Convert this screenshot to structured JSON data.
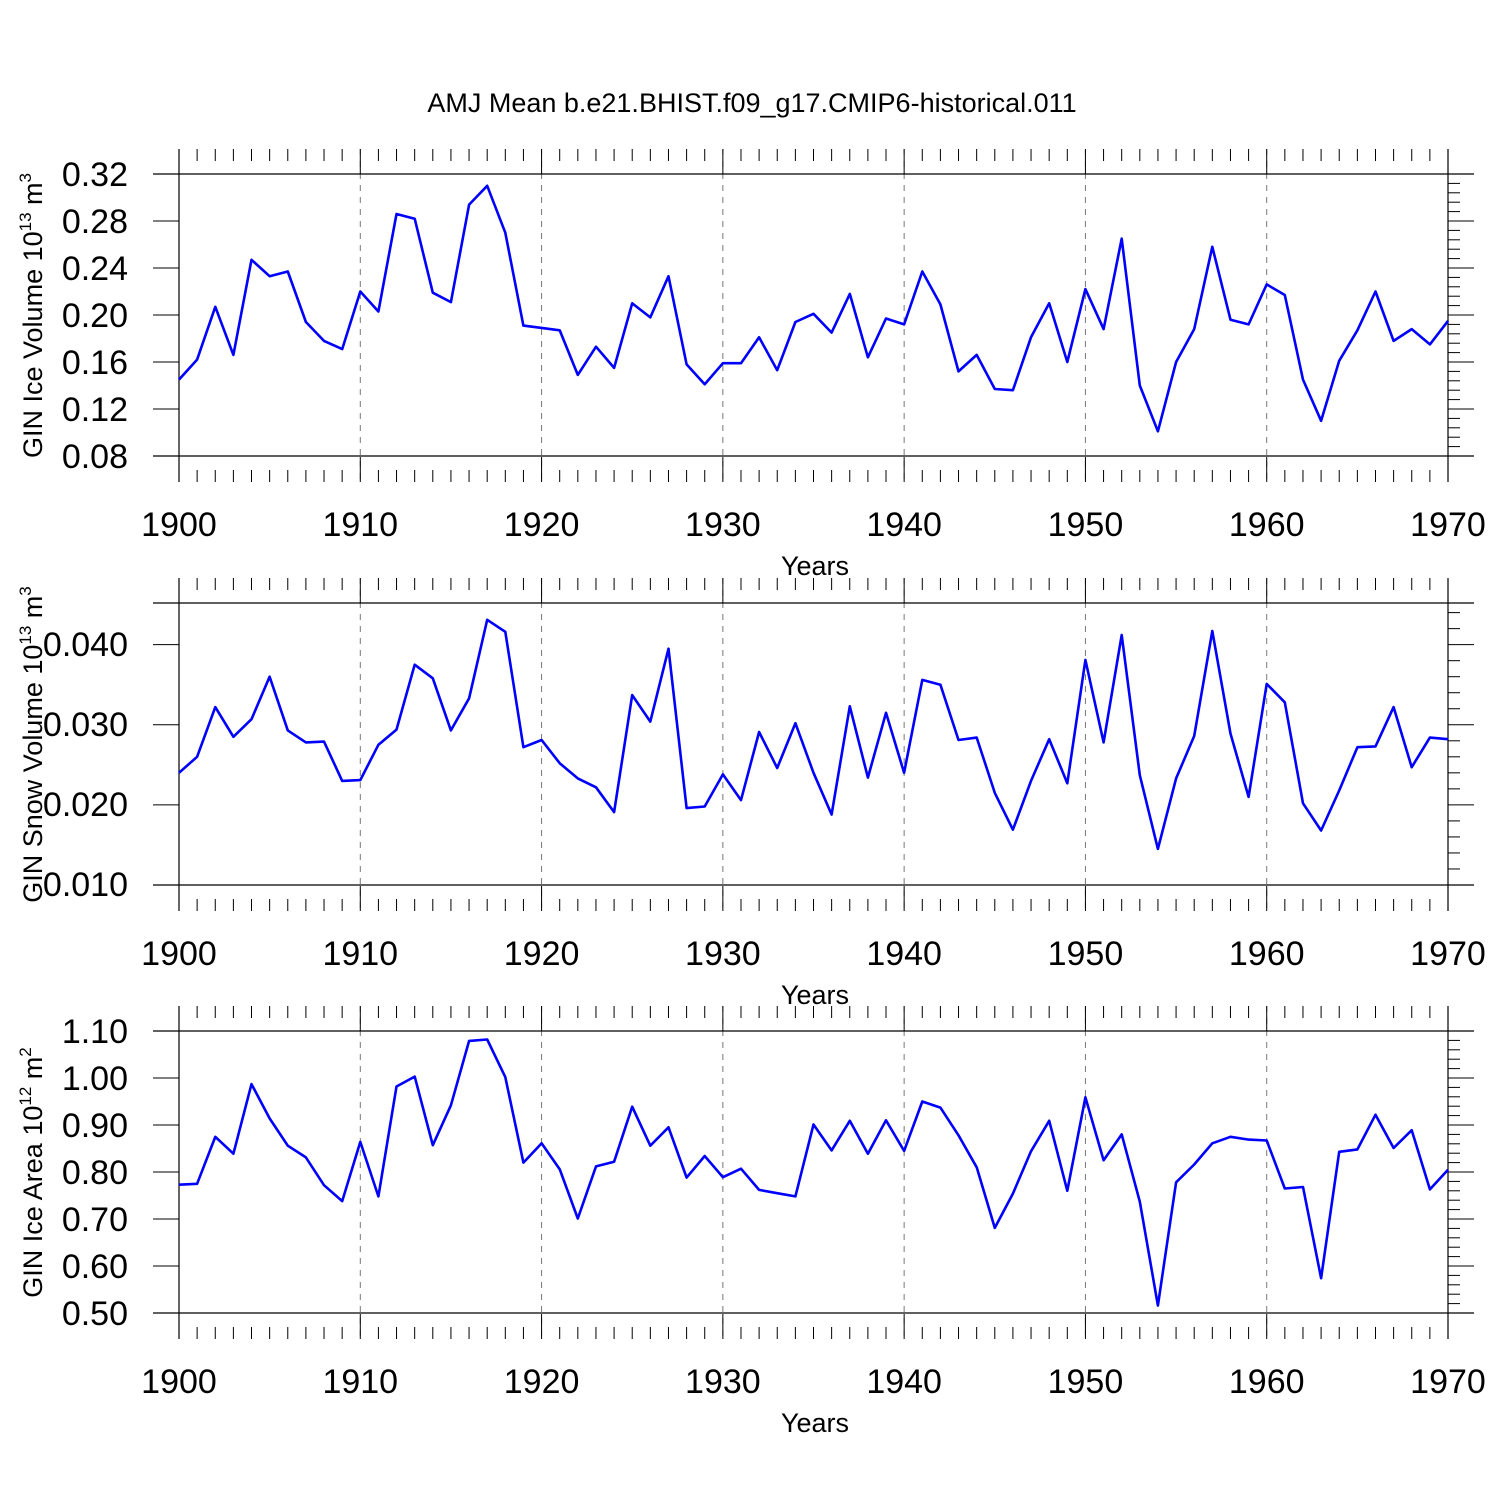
{
  "title": "AMJ Mean b.e21.BHIST.f09_g17.CMIP6-historical.011",
  "line_color": "#0000ff",
  "chart_data": [
    {
      "type": "line",
      "ylabel_parts": [
        "GIN Ice Volume 10",
        "13",
        " m",
        "3"
      ],
      "xlabel": "Years",
      "xlim": [
        1900,
        1970
      ],
      "ylim": [
        0.08,
        0.32
      ],
      "xticks": [
        1900,
        1910,
        1920,
        1930,
        1940,
        1950,
        1960,
        1970
      ],
      "yticks": [
        "0.08",
        "0.12",
        "0.16",
        "0.20",
        "0.24",
        "0.28",
        "0.32"
      ],
      "x_start": 1900,
      "values": [
        0.145,
        0.162,
        0.207,
        0.166,
        0.247,
        0.233,
        0.237,
        0.194,
        0.178,
        0.171,
        0.22,
        0.203,
        0.286,
        0.282,
        0.219,
        0.211,
        0.294,
        0.31,
        0.27,
        0.191,
        0.189,
        0.187,
        0.149,
        0.173,
        0.155,
        0.21,
        0.198,
        0.233,
        0.158,
        0.141,
        0.159,
        0.159,
        0.181,
        0.153,
        0.194,
        0.201,
        0.185,
        0.218,
        0.164,
        0.197,
        0.192,
        0.237,
        0.209,
        0.152,
        0.166,
        0.137,
        0.136,
        0.181,
        0.21,
        0.16,
        0.222,
        0.188,
        0.265,
        0.14,
        0.101,
        0.16,
        0.188,
        0.258,
        0.196,
        0.192,
        0.226,
        0.217,
        0.145,
        0.11,
        0.161,
        0.187,
        0.22,
        0.178,
        0.188,
        0.175,
        0.195
      ]
    },
    {
      "type": "line",
      "ylabel_parts": [
        "GIN Snow Volume 10",
        "13",
        " m",
        "3"
      ],
      "xlabel": "Years",
      "xlim": [
        1900,
        1970
      ],
      "ylim": [
        0.0099,
        0.0451
      ],
      "xticks": [
        1900,
        1910,
        1920,
        1930,
        1940,
        1950,
        1960,
        1970
      ],
      "yticks": [
        "0.010",
        "0.020",
        "0.030",
        "0.040"
      ],
      "x_start": 1900,
      "values": [
        0.0239,
        0.0259,
        0.0321,
        0.0284,
        0.0306,
        0.0359,
        0.0292,
        0.0277,
        0.0278,
        0.0229,
        0.023,
        0.0274,
        0.0293,
        0.0374,
        0.0357,
        0.0292,
        0.0332,
        0.043,
        0.0415,
        0.0271,
        0.028,
        0.0251,
        0.0232,
        0.0221,
        0.019,
        0.0336,
        0.0303,
        0.0394,
        0.0195,
        0.0197,
        0.0237,
        0.0205,
        0.029,
        0.0245,
        0.0301,
        0.0239,
        0.0187,
        0.0322,
        0.0233,
        0.0314,
        0.0239,
        0.0355,
        0.0349,
        0.028,
        0.0283,
        0.0214,
        0.0168,
        0.0229,
        0.0281,
        0.0226,
        0.038,
        0.0277,
        0.0411,
        0.0236,
        0.0144,
        0.0232,
        0.0285,
        0.0416,
        0.0288,
        0.0209,
        0.035,
        0.0327,
        0.0201,
        0.0167,
        0.0217,
        0.0271,
        0.0272,
        0.0321,
        0.0246,
        0.0283,
        0.0281
      ]
    },
    {
      "type": "line",
      "ylabel_parts": [
        "GIN Ice Area 10",
        "12",
        " m",
        "2"
      ],
      "xlabel": "Years",
      "xlim": [
        1900,
        1970
      ],
      "ylim": [
        0.5,
        1.1
      ],
      "xticks": [
        1900,
        1910,
        1920,
        1930,
        1940,
        1950,
        1960,
        1970
      ],
      "yticks": [
        "0.50",
        "0.60",
        "0.70",
        "0.80",
        "0.90",
        "1.00",
        "1.10"
      ],
      "x_start": 1900,
      "values": [
        0.773,
        0.775,
        0.875,
        0.839,
        0.987,
        0.914,
        0.856,
        0.831,
        0.772,
        0.738,
        0.864,
        0.748,
        0.982,
        1.003,
        0.857,
        0.942,
        1.079,
        1.082,
        1.002,
        0.82,
        0.861,
        0.806,
        0.701,
        0.812,
        0.822,
        0.939,
        0.856,
        0.895,
        0.788,
        0.834,
        0.789,
        0.807,
        0.762,
        0.755,
        0.748,
        0.901,
        0.846,
        0.909,
        0.839,
        0.91,
        0.845,
        0.95,
        0.937,
        0.878,
        0.81,
        0.681,
        0.754,
        0.844,
        0.909,
        0.76,
        0.959,
        0.825,
        0.88,
        0.737,
        0.516,
        0.778,
        0.816,
        0.861,
        0.875,
        0.869,
        0.867,
        0.765,
        0.768,
        0.574,
        0.843,
        0.848,
        0.922,
        0.851,
        0.889,
        0.763,
        0.805
      ]
    }
  ]
}
